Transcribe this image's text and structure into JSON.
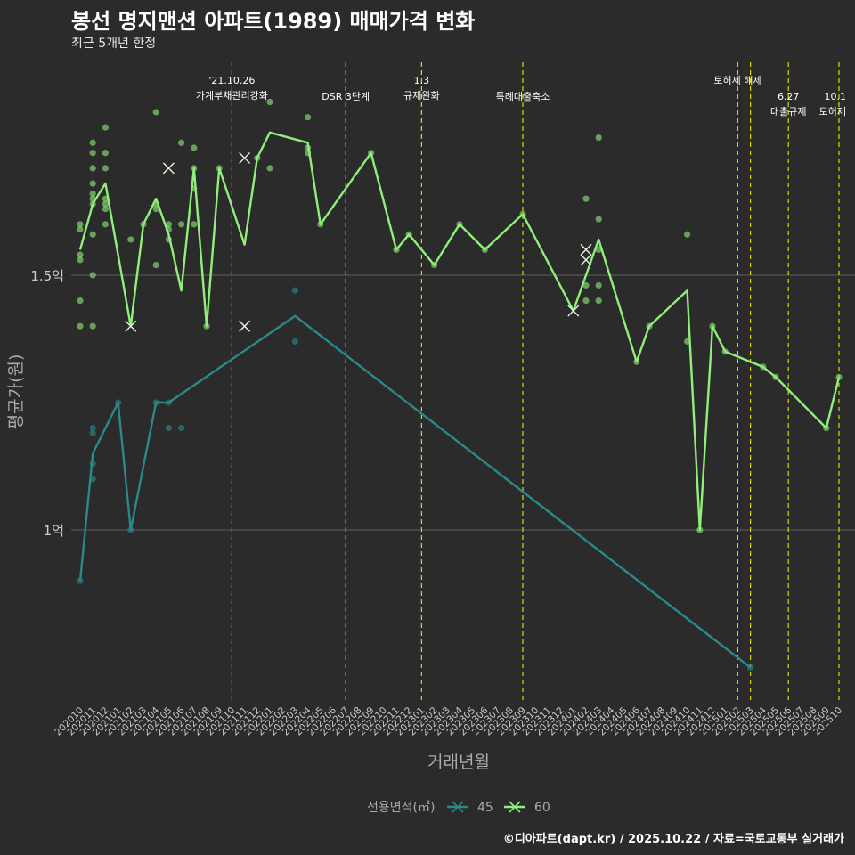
{
  "title": "봉선 명지맨션 아파트(1989) 매매가격 변화",
  "subtitle": "최근 5개년 한정",
  "caption": "©디아파트(dapt.kr) / 2025.10.22 / 자료=국토교통부 실거래가",
  "colors": {
    "background": "#2b2b2b",
    "grid": "#555555",
    "series_45": "#2a8a8a",
    "series_60": "#90ee7a",
    "event_line": "#d9d900",
    "axis_text": "#cccccc"
  },
  "chart_data": {
    "type": "line",
    "title": "봉선 명지맨션 아파트(1989) 매매가격 변화",
    "xlabel": "거래년월",
    "ylabel": "평균가(원)",
    "ylim": [
      0.7,
      1.98
    ],
    "y_ticks": [
      {
        "value": 1.0,
        "label": "1억"
      },
      {
        "value": 1.5,
        "label": "1.5억"
      }
    ],
    "x_categories": [
      "202010",
      "202011",
      "202012",
      "202101",
      "202102",
      "202103",
      "202104",
      "202105",
      "202106",
      "202107",
      "202108",
      "202109",
      "202110",
      "202111",
      "202112",
      "202201",
      "202202",
      "202203",
      "202204",
      "202205",
      "202206",
      "202207",
      "202208",
      "202209",
      "202210",
      "202211",
      "202212",
      "202301",
      "202302",
      "202303",
      "202304",
      "202305",
      "202306",
      "202307",
      "202308",
      "202309",
      "202310",
      "202311",
      "202312",
      "202401",
      "202402",
      "202403",
      "202404",
      "202405",
      "202406",
      "202407",
      "202408",
      "202409",
      "202410",
      "202411",
      "202412",
      "202501",
      "202502",
      "202503",
      "202504",
      "202505",
      "202506",
      "202507",
      "202508",
      "202509",
      "202510"
    ],
    "legend_title": "전용면적(㎡)",
    "legend_position": "bottom",
    "series": [
      {
        "name": "45",
        "color": "#2a8a8a",
        "line": [
          [
            "202010",
            0.9
          ],
          [
            "202011",
            1.15
          ],
          [
            "202101",
            1.25
          ],
          [
            "202102",
            1.0
          ],
          [
            "202104",
            1.25
          ],
          [
            "202105",
            1.25
          ],
          [
            "202203",
            1.42
          ],
          [
            "202503",
            0.73
          ]
        ],
        "points": [
          [
            "202010",
            0.9
          ],
          [
            "202011",
            1.2
          ],
          [
            "202011",
            1.19
          ],
          [
            "202011",
            1.13
          ],
          [
            "202011",
            1.1
          ],
          [
            "202101",
            1.25
          ],
          [
            "202102",
            1.0
          ],
          [
            "202104",
            1.25
          ],
          [
            "202105",
            1.25
          ],
          [
            "202105",
            1.2
          ],
          [
            "202106",
            1.2
          ],
          [
            "202203",
            1.47
          ],
          [
            "202203",
            1.37
          ],
          [
            "202503",
            0.73
          ]
        ],
        "cross_points": []
      },
      {
        "name": "60",
        "color": "#90ee7a",
        "line": [
          [
            "202010",
            1.55
          ],
          [
            "202011",
            1.64
          ],
          [
            "202012",
            1.68
          ],
          [
            "202102",
            1.4
          ],
          [
            "202103",
            1.6
          ],
          [
            "202104",
            1.65
          ],
          [
            "202105",
            1.58
          ],
          [
            "202106",
            1.47
          ],
          [
            "202107",
            1.71
          ],
          [
            "202108",
            1.4
          ],
          [
            "202109",
            1.71
          ],
          [
            "202111",
            1.56
          ],
          [
            "202112",
            1.73
          ],
          [
            "202201",
            1.78
          ],
          [
            "202204",
            1.76
          ],
          [
            "202205",
            1.6
          ],
          [
            "202209",
            1.74
          ],
          [
            "202211",
            1.55
          ],
          [
            "202212",
            1.58
          ],
          [
            "202302",
            1.52
          ],
          [
            "202304",
            1.6
          ],
          [
            "202306",
            1.55
          ],
          [
            "202309",
            1.62
          ],
          [
            "202401",
            1.43
          ],
          [
            "202403",
            1.57
          ],
          [
            "202406",
            1.33
          ],
          [
            "202407",
            1.4
          ],
          [
            "202410",
            1.47
          ],
          [
            "202411",
            1.0
          ],
          [
            "202412",
            1.4
          ],
          [
            "202501",
            1.35
          ],
          [
            "202504",
            1.32
          ],
          [
            "202505",
            1.3
          ],
          [
            "202509",
            1.2
          ],
          [
            "202510",
            1.3
          ]
        ],
        "points": [
          [
            "202010",
            1.6
          ],
          [
            "202010",
            1.59
          ],
          [
            "202010",
            1.53
          ],
          [
            "202010",
            1.54
          ],
          [
            "202010",
            1.45
          ],
          [
            "202010",
            1.4
          ],
          [
            "202011",
            1.76
          ],
          [
            "202011",
            1.74
          ],
          [
            "202011",
            1.71
          ],
          [
            "202011",
            1.68
          ],
          [
            "202011",
            1.66
          ],
          [
            "202011",
            1.65
          ],
          [
            "202011",
            1.64
          ],
          [
            "202011",
            1.58
          ],
          [
            "202011",
            1.5
          ],
          [
            "202011",
            1.4
          ],
          [
            "202012",
            1.79
          ],
          [
            "202012",
            1.74
          ],
          [
            "202012",
            1.71
          ],
          [
            "202012",
            1.65
          ],
          [
            "202012",
            1.64
          ],
          [
            "202012",
            1.63
          ],
          [
            "202012",
            1.6
          ],
          [
            "202102",
            1.57
          ],
          [
            "202103",
            1.6
          ],
          [
            "202104",
            1.82
          ],
          [
            "202104",
            1.64
          ],
          [
            "202104",
            1.63
          ],
          [
            "202104",
            1.52
          ],
          [
            "202105",
            1.6
          ],
          [
            "202105",
            1.59
          ],
          [
            "202105",
            1.57
          ],
          [
            "202106",
            1.76
          ],
          [
            "202106",
            1.6
          ],
          [
            "202107",
            1.75
          ],
          [
            "202107",
            1.71
          ],
          [
            "202107",
            1.67
          ],
          [
            "202107",
            1.6
          ],
          [
            "202108",
            1.4
          ],
          [
            "202109",
            1.71
          ],
          [
            "202112",
            1.73
          ],
          [
            "202201",
            1.84
          ],
          [
            "202201",
            1.71
          ],
          [
            "202204",
            1.81
          ],
          [
            "202204",
            1.75
          ],
          [
            "202204",
            1.74
          ],
          [
            "202205",
            1.6
          ],
          [
            "202209",
            1.74
          ],
          [
            "202211",
            1.55
          ],
          [
            "202212",
            1.58
          ],
          [
            "202302",
            1.52
          ],
          [
            "202304",
            1.6
          ],
          [
            "202306",
            1.55
          ],
          [
            "202309",
            1.62
          ],
          [
            "202402",
            1.48
          ],
          [
            "202402",
            1.45
          ],
          [
            "202402",
            1.65
          ],
          [
            "202403",
            1.77
          ],
          [
            "202403",
            1.61
          ],
          [
            "202403",
            1.55
          ],
          [
            "202403",
            1.48
          ],
          [
            "202403",
            1.45
          ],
          [
            "202406",
            1.33
          ],
          [
            "202407",
            1.4
          ],
          [
            "202410",
            1.58
          ],
          [
            "202410",
            1.37
          ],
          [
            "202411",
            1.0
          ],
          [
            "202412",
            1.4
          ],
          [
            "202501",
            1.35
          ],
          [
            "202504",
            1.32
          ],
          [
            "202505",
            1.3
          ],
          [
            "202509",
            1.2
          ],
          [
            "202510",
            1.3
          ]
        ],
        "cross_points": [
          [
            "202102",
            1.4
          ],
          [
            "202105",
            1.71
          ],
          [
            "202111",
            1.73
          ],
          [
            "202111",
            1.4
          ],
          [
            "202401",
            1.43
          ],
          [
            "202402",
            1.55
          ],
          [
            "202402",
            1.53
          ]
        ]
      }
    ],
    "events": [
      {
        "month": "202110",
        "label_lines": [
          "'21.10.26",
          "가계부채관리강화"
        ],
        "y_level": 0
      },
      {
        "month": "202207",
        "label_lines": [
          "DSR 3단계"
        ],
        "y_level": 1
      },
      {
        "month": "202301",
        "label_lines": [
          "1.3",
          "규제완화"
        ],
        "y_level": 0
      },
      {
        "month": "202309",
        "label_lines": [
          "특례대출축소"
        ],
        "y_level": 1
      },
      {
        "month": "202502",
        "label_lines": [
          "토허제 해제"
        ],
        "y_level": 0
      },
      {
        "month": "202503",
        "label_lines": [],
        "y_level": 0
      },
      {
        "month": "202506",
        "label_lines": [
          "6.27",
          "대출규제"
        ],
        "y_level": 1
      },
      {
        "month": "202510",
        "label_lines": [
          "10.1",
          "토허제"
        ],
        "y_level": 1
      }
    ]
  }
}
